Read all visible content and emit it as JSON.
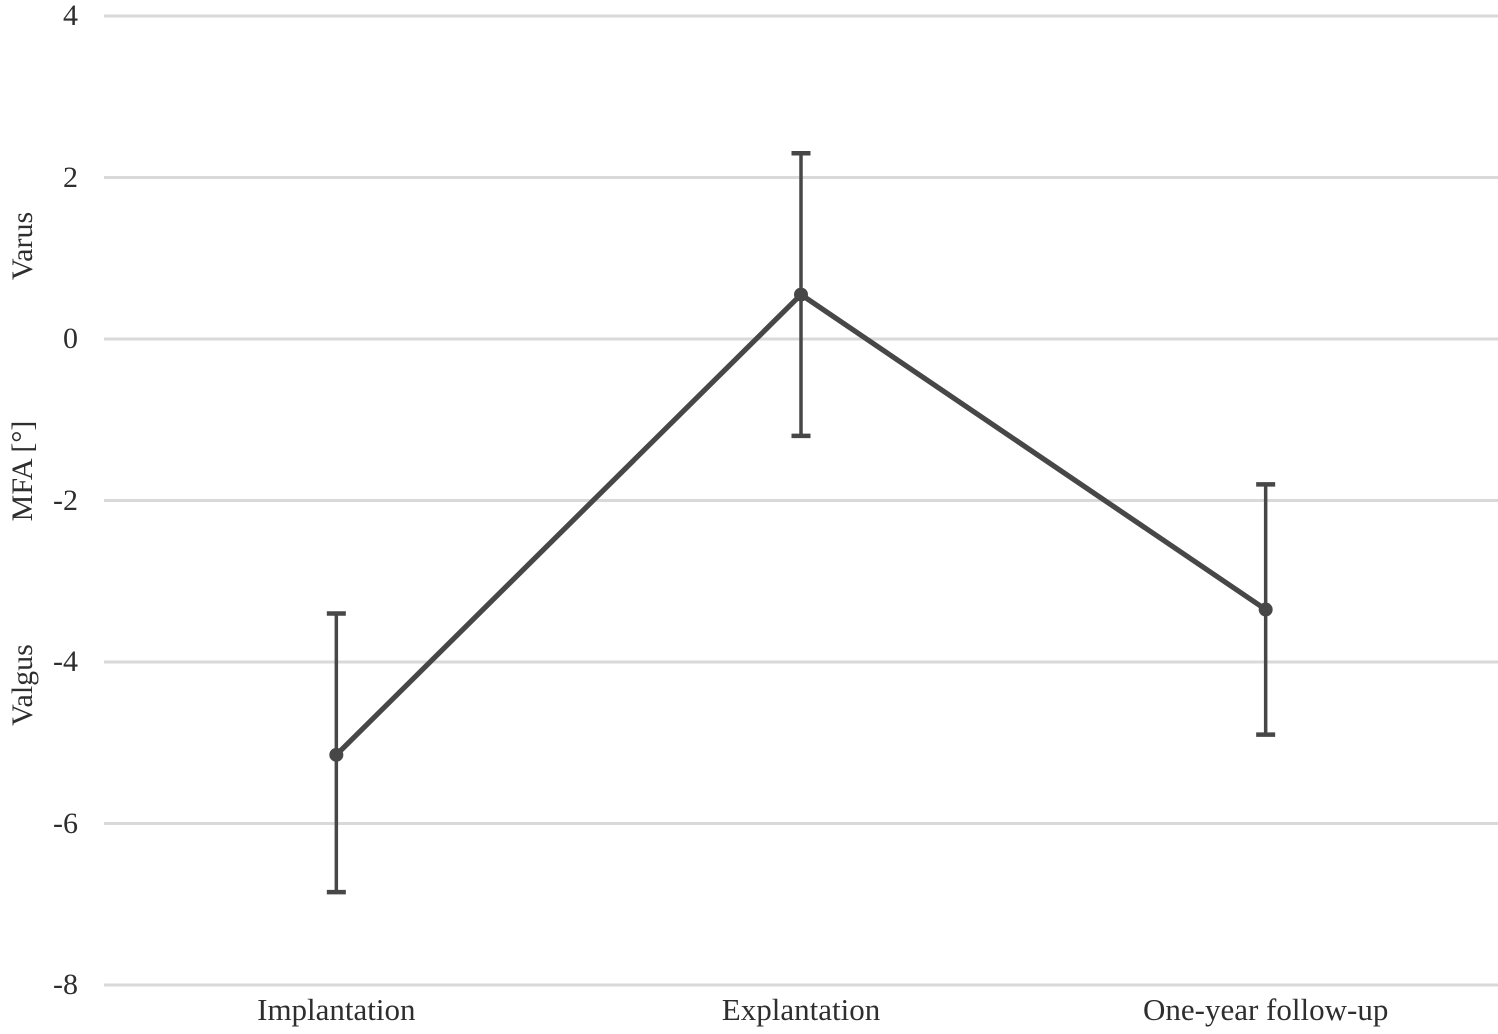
{
  "chart_data": {
    "type": "line",
    "categories": [
      "Implantation",
      "Explantation",
      "One-year follow-up"
    ],
    "series": [
      {
        "name": "MFA",
        "values": [
          -5.15,
          0.55,
          -3.35
        ],
        "error_upper": [
          -3.4,
          2.3,
          -1.8
        ],
        "error_lower": [
          -6.85,
          -1.2,
          -4.9
        ]
      }
    ],
    "title": "",
    "xlabel": "",
    "ylabel": "MFA [°]",
    "y_region_labels": {
      "top": "Varus",
      "bottom": "Valgus"
    },
    "yticks": [
      4,
      2,
      0,
      -2,
      -4,
      -6,
      -8
    ],
    "ylim": [
      -8,
      4
    ],
    "grid": "horizontal",
    "legend": "none",
    "marker": "circle",
    "colors": {
      "line": "#474747",
      "marker": "#474747",
      "error_bar": "#474747",
      "gridline": "#d9d9d9",
      "text": "#2e2e2e",
      "background": "#ffffff"
    }
  }
}
